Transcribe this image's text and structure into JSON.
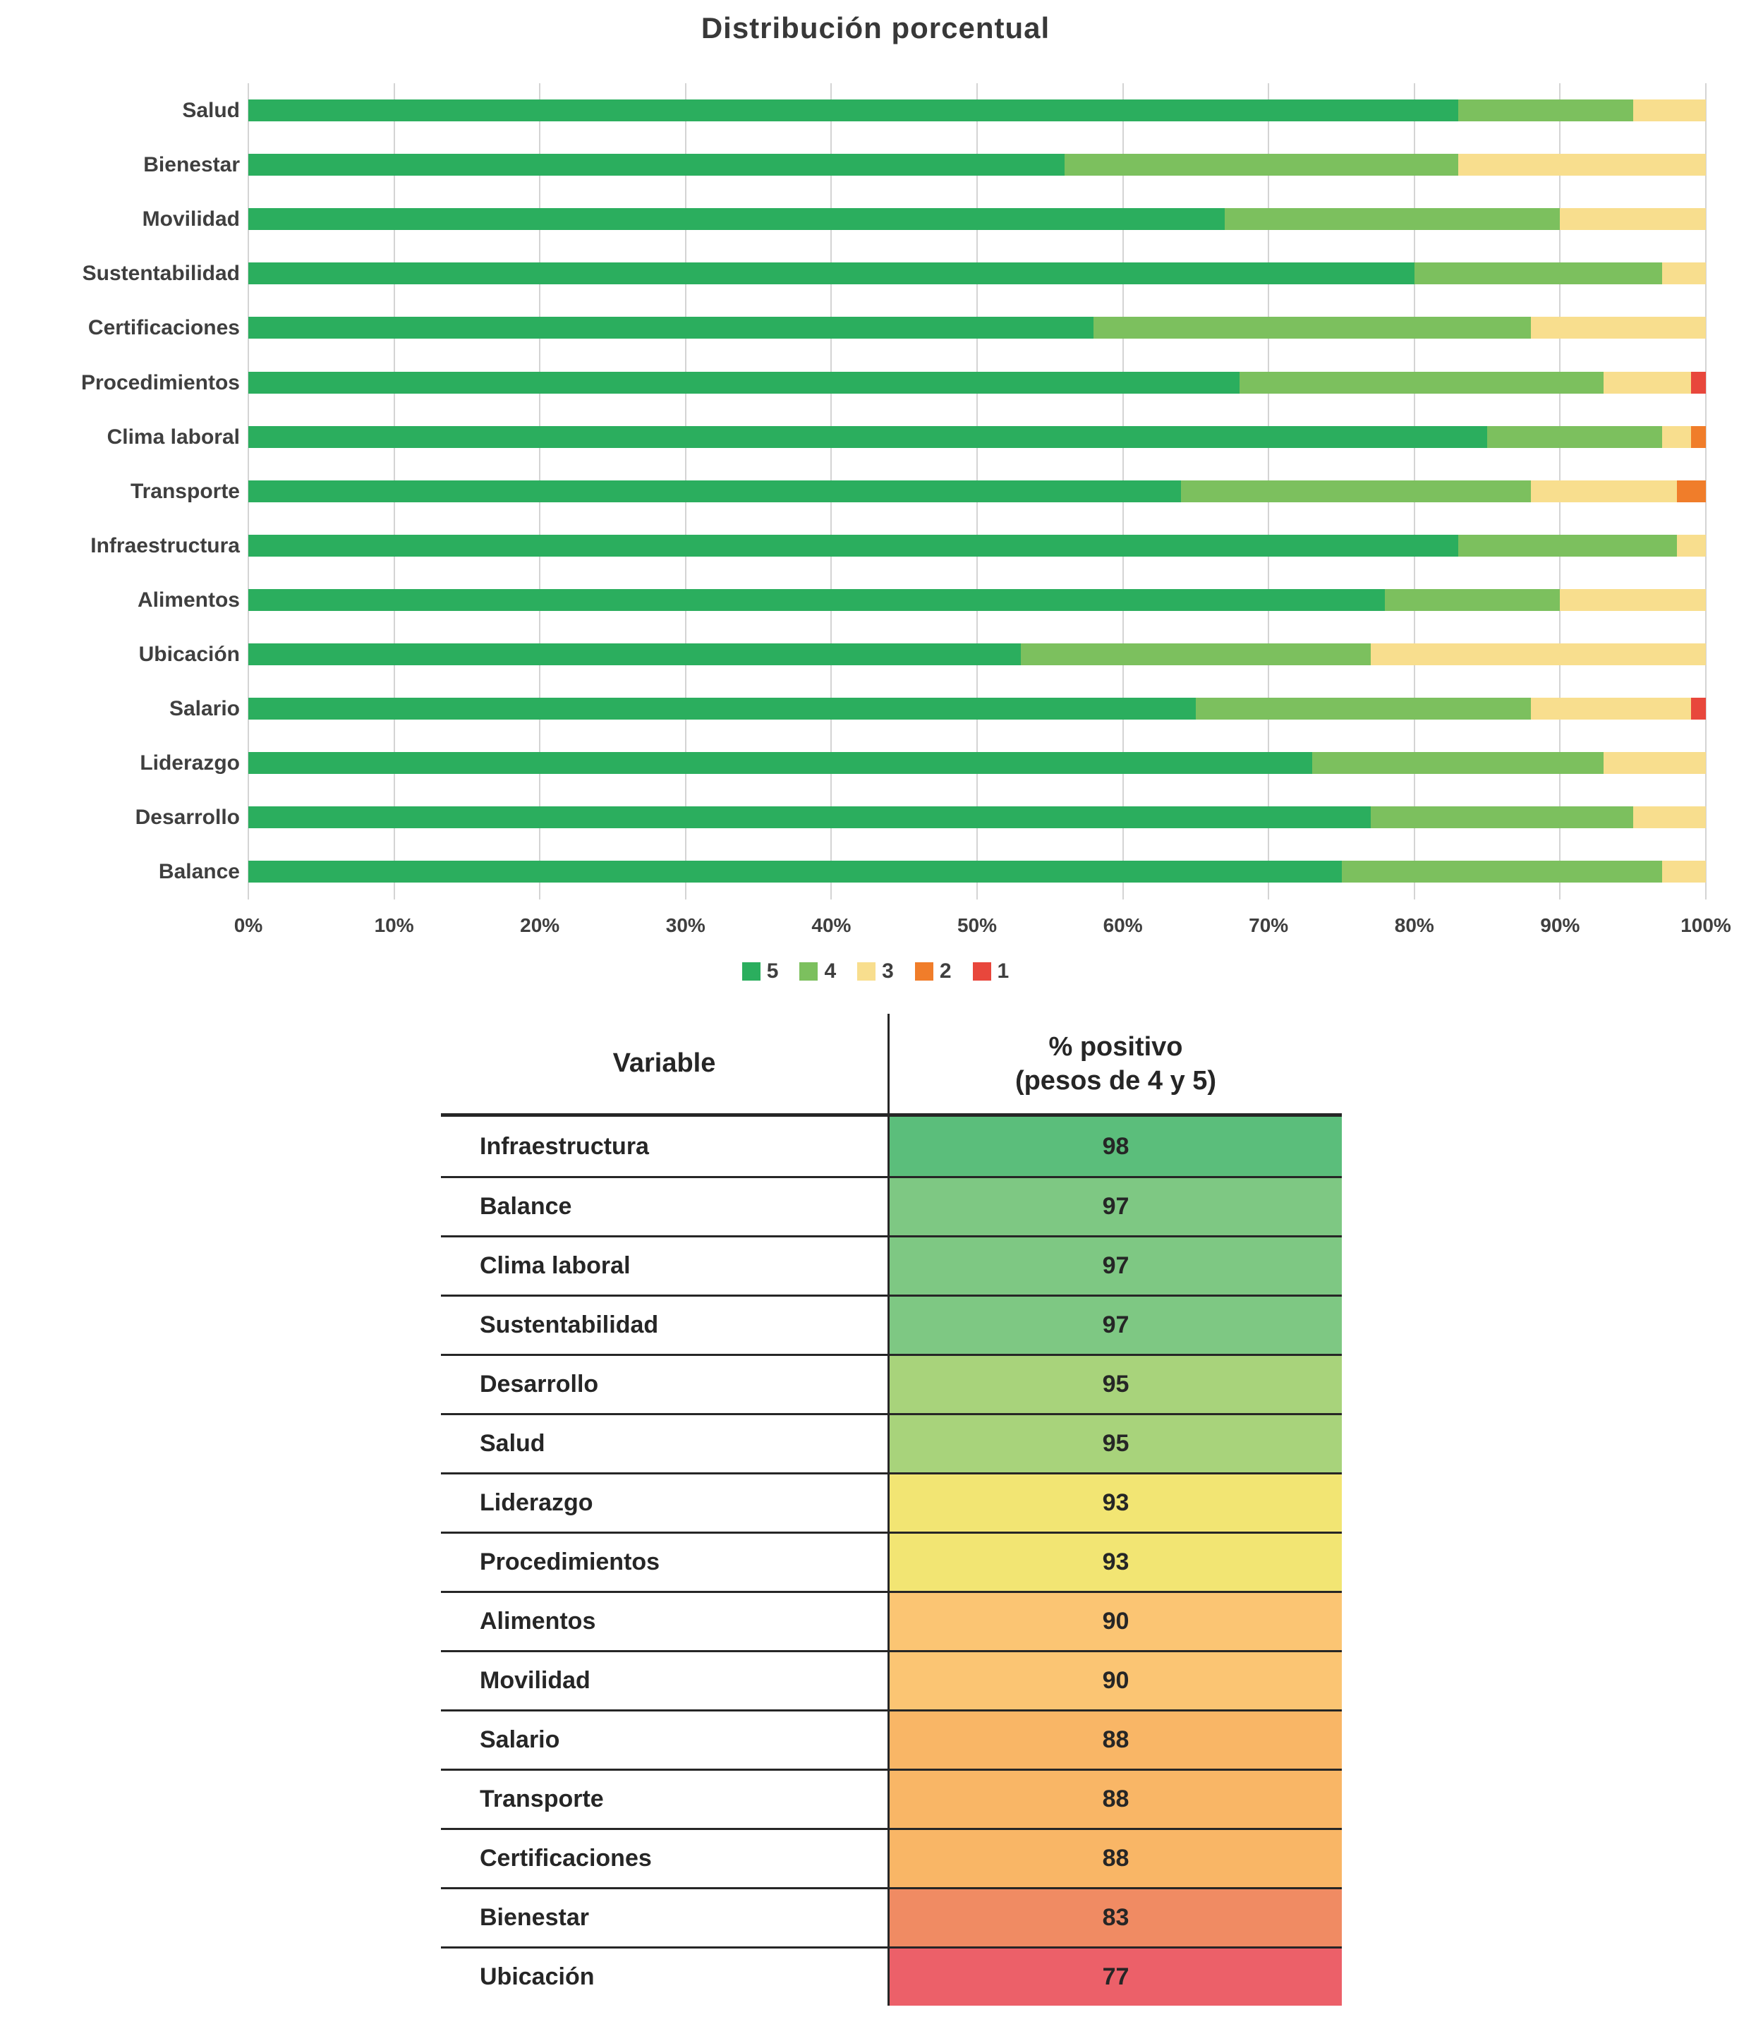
{
  "chart_data": {
    "type": "bar",
    "orientation": "horizontal",
    "stacked": true,
    "title": "Distribución porcentual",
    "categories": [
      "Salud",
      "Bienestar",
      "Movilidad",
      "Sustentabilidad",
      "Certificaciones",
      "Procedimientos",
      "Clima laboral",
      "Transporte",
      "Infraestructura",
      "Alimentos",
      "Ubicación",
      "Salario",
      "Liderazgo",
      "Desarrollo",
      "Balance"
    ],
    "series": [
      {
        "name": "5",
        "color": "#2BAE5E",
        "values": [
          83,
          56,
          67,
          80,
          58,
          68,
          85,
          64,
          83,
          78,
          53,
          65,
          73,
          77,
          75
        ]
      },
      {
        "name": "4",
        "color": "#7CC05E",
        "values": [
          12,
          27,
          23,
          17,
          30,
          25,
          12,
          24,
          15,
          12,
          24,
          23,
          20,
          18,
          22
        ]
      },
      {
        "name": "3",
        "color": "#F8DE8E",
        "values": [
          5,
          17,
          10,
          3,
          12,
          6,
          2,
          10,
          2,
          10,
          23,
          11,
          7,
          5,
          3
        ]
      },
      {
        "name": "2",
        "color": "#F07D2A",
        "values": [
          0,
          0,
          0,
          0,
          0,
          0,
          1,
          2,
          0,
          0,
          0,
          0,
          0,
          0,
          0
        ]
      },
      {
        "name": "1",
        "color": "#E8473C",
        "values": [
          0,
          0,
          0,
          0,
          0,
          1,
          0,
          0,
          0,
          0,
          0,
          1,
          0,
          0,
          0
        ]
      }
    ],
    "xlim": [
      0,
      100
    ],
    "xticks": [
      "0%",
      "10%",
      "20%",
      "30%",
      "40%",
      "50%",
      "60%",
      "70%",
      "80%",
      "90%",
      "100%"
    ],
    "legend": [
      "5",
      "4",
      "3",
      "2",
      "1"
    ],
    "legend_position": "bottom",
    "grid": true
  },
  "table": {
    "col1_header": "Variable",
    "col2_header_line1": "% positivo",
    "col2_header_line2": "(pesos de 4 y 5)",
    "rows": [
      {
        "variable": "Infraestructura",
        "value": 98,
        "color": "#5BBE7B"
      },
      {
        "variable": "Balance",
        "value": 97,
        "color": "#7EC883"
      },
      {
        "variable": "Clima laboral",
        "value": 97,
        "color": "#7EC883"
      },
      {
        "variable": "Sustentabilidad",
        "value": 97,
        "color": "#7EC883"
      },
      {
        "variable": "Desarrollo",
        "value": 95,
        "color": "#A8D37B"
      },
      {
        "variable": "Salud",
        "value": 95,
        "color": "#A8D37B"
      },
      {
        "variable": "Liderazgo",
        "value": 93,
        "color": "#F2E573"
      },
      {
        "variable": "Procedimientos",
        "value": 93,
        "color": "#F2E573"
      },
      {
        "variable": "Alimentos",
        "value": 90,
        "color": "#FBC573"
      },
      {
        "variable": "Movilidad",
        "value": 90,
        "color": "#FBC573"
      },
      {
        "variable": "Salario",
        "value": 88,
        "color": "#F9B666"
      },
      {
        "variable": "Transporte",
        "value": 88,
        "color": "#F9B666"
      },
      {
        "variable": "Certificaciones",
        "value": 88,
        "color": "#F9B666"
      },
      {
        "variable": "Bienestar",
        "value": 83,
        "color": "#F08B63"
      },
      {
        "variable": "Ubicación",
        "value": 77,
        "color": "#EC6069"
      }
    ]
  }
}
